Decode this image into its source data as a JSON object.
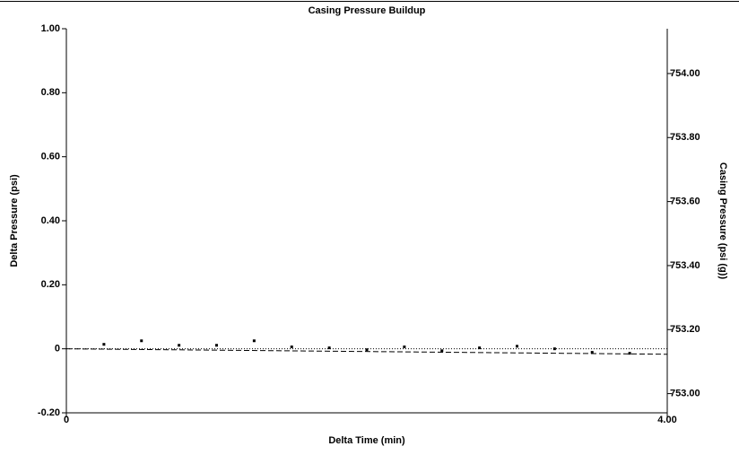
{
  "chart_data": {
    "type": "scatter",
    "title": "Casing Pressure Buildup",
    "xlabel": "Delta Time (min)",
    "ylabel": "Delta Pressure (psi)",
    "y2label": "Casing Pressure (psi (g))",
    "xlim": [
      0,
      4
    ],
    "xticks": [
      0,
      {
        "value": 4,
        "label": "4.00"
      }
    ],
    "ylim": [
      -0.2,
      1
    ],
    "yticks": [
      {
        "value": -0.2,
        "label": "-0.20"
      },
      0,
      {
        "value": 0.2,
        "label": "0.20"
      },
      {
        "value": 0.4,
        "label": "0.40"
      },
      {
        "value": 0.6,
        "label": "0.60"
      },
      {
        "value": 0.8,
        "label": "0.80"
      },
      {
        "value": 1,
        "label": "1.00"
      }
    ],
    "y2lim": [
      752.94,
      754.14
    ],
    "y2ticks": [
      {
        "value": 753,
        "label": "753.00"
      },
      {
        "value": 753.2,
        "label": "753.20"
      },
      {
        "value": 753.4,
        "label": "753.40"
      },
      {
        "value": 753.6,
        "label": "753.60"
      },
      {
        "value": 753.8,
        "label": "753.80"
      },
      {
        "value": 754,
        "label": "754.00"
      }
    ],
    "reference_line": 0,
    "series": [
      {
        "color": "#000000",
        "x": [
          0.25,
          0.5,
          0.75,
          1,
          1.25,
          1.5,
          1.75,
          2,
          2.25,
          2.5,
          2.75,
          3,
          3.25,
          3.5,
          3.75
        ],
        "values": [
          0.014,
          0.025,
          0.011,
          0.011,
          0.025,
          0.006,
          0.003,
          -0.003,
          0.006,
          -0.006,
          0.003,
          0.008,
          0,
          -0.011,
          -0.014
        ]
      }
    ],
    "trend": {
      "color": "#000000",
      "x": [
        0,
        4
      ],
      "values": [
        0,
        -0.017
      ]
    }
  }
}
